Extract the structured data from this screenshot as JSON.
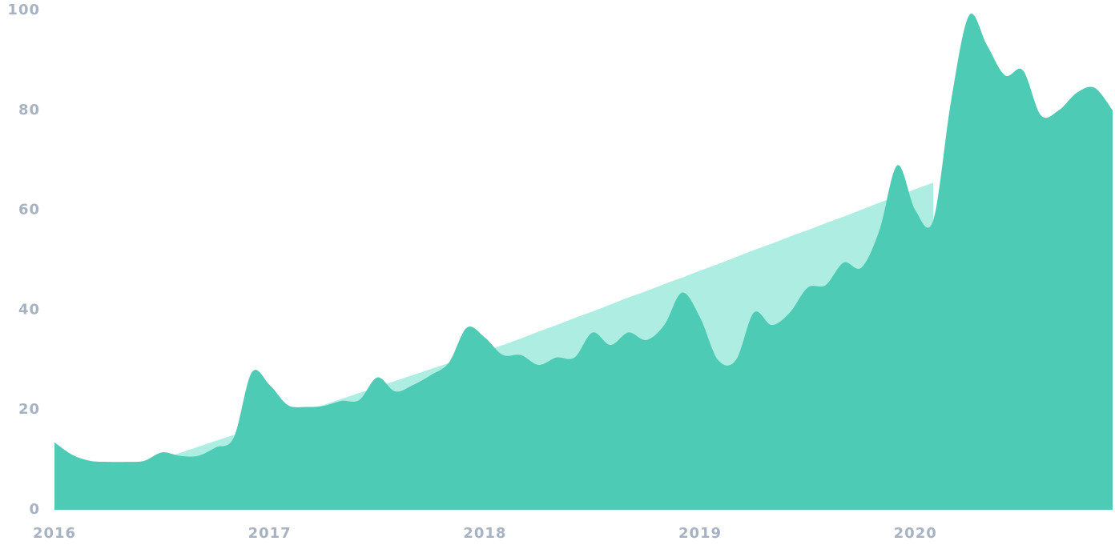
{
  "chart_data": {
    "type": "area",
    "categories": [
      "2016",
      null,
      null,
      null,
      null,
      null,
      null,
      null,
      null,
      null,
      null,
      null,
      "2017",
      null,
      null,
      null,
      null,
      null,
      null,
      null,
      null,
      null,
      null,
      null,
      "2018",
      null,
      null,
      null,
      null,
      null,
      null,
      null,
      null,
      null,
      null,
      null,
      "2019",
      null,
      null,
      null,
      null,
      null,
      null,
      null,
      null,
      null,
      null,
      null,
      "2020",
      null,
      null,
      null,
      null,
      null,
      null,
      null,
      null,
      null,
      null,
      null
    ],
    "series": [
      {
        "color": "#aeeee2",
        "values": [
          3,
          4.2,
          5.4,
          6.6,
          7.8,
          9,
          10.2,
          11.4,
          12.6,
          13.8,
          15,
          16.2,
          17.4,
          18.6,
          19.8,
          21,
          22.2,
          23.4,
          24.6,
          25.8,
          27,
          28.2,
          29.4,
          30.6,
          31.8,
          33,
          34.3,
          35.7,
          37,
          38.4,
          39.7,
          41.1,
          42.5,
          43.8,
          45.2,
          46.5,
          47.9,
          49.2,
          50.6,
          52,
          53.3,
          54.7,
          56,
          57.4,
          58.7,
          60.1,
          61.5,
          62.8,
          64.2,
          65.5,
          null,
          null,
          null,
          null,
          null,
          null,
          null,
          null,
          null,
          null
        ]
      },
      {
        "color": "#4ecbb5",
        "values": [
          13.5,
          11,
          9.8,
          9.6,
          9.6,
          9.8,
          11.5,
          10.8,
          10.8,
          12.5,
          14.5,
          27.5,
          25,
          21,
          20.6,
          20.8,
          21.8,
          22,
          26.5,
          23.7,
          25,
          27,
          29.5,
          36.5,
          34.5,
          31,
          31,
          29,
          30.5,
          30.5,
          35.5,
          33,
          35.5,
          34,
          37,
          43.5,
          38.5,
          30,
          30,
          39.5,
          37,
          39.5,
          44.5,
          45,
          49.5,
          48.5,
          56,
          69,
          60,
          58,
          82,
          99,
          93,
          87,
          88,
          79,
          80,
          83.5,
          84.5,
          80
        ]
      }
    ],
    "ylim": [
      0,
      100
    ],
    "yticks": [
      0,
      20,
      40,
      60,
      80,
      100
    ],
    "grid": false
  }
}
